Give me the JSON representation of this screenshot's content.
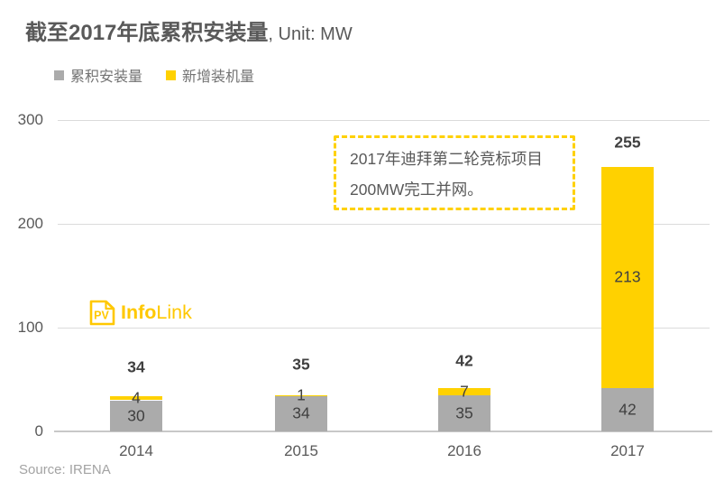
{
  "title": {
    "main": "截至2017年底累积安装量",
    "unit_suffix": ", Unit: MW"
  },
  "legend": [
    {
      "label": "累积安装量",
      "color": "#ABABAB"
    },
    {
      "label": "新增装机量",
      "color": "#FFD100"
    }
  ],
  "chart_data": {
    "type": "bar",
    "stacked": true,
    "title": "截至2017年底累积安装量, Unit: MW",
    "categories": [
      "2014",
      "2015",
      "2016",
      "2017"
    ],
    "series": [
      {
        "name": "累积安装量",
        "color": "#ABABAB",
        "values": [
          30,
          34,
          35,
          42
        ]
      },
      {
        "name": "新增装机量",
        "color": "#FFD100",
        "values": [
          4,
          1,
          7,
          213
        ]
      }
    ],
    "totals": [
      34,
      35,
      42,
      255
    ],
    "ylim": [
      0,
      300
    ],
    "yticks": [
      0,
      100,
      200,
      300
    ],
    "grid": true,
    "legend_position": "top-left",
    "label_color": "#404040",
    "axis_color": "#595959"
  },
  "annotation": {
    "lines": [
      "2017年迪拜第二轮竞标项目",
      "200MW完工并网。"
    ],
    "border_color": "#FFD100"
  },
  "logo": {
    "icon_text": "PV",
    "bold": "Info",
    "regular": "Link",
    "color": "#FFC800"
  },
  "source": "Source: IRENA"
}
